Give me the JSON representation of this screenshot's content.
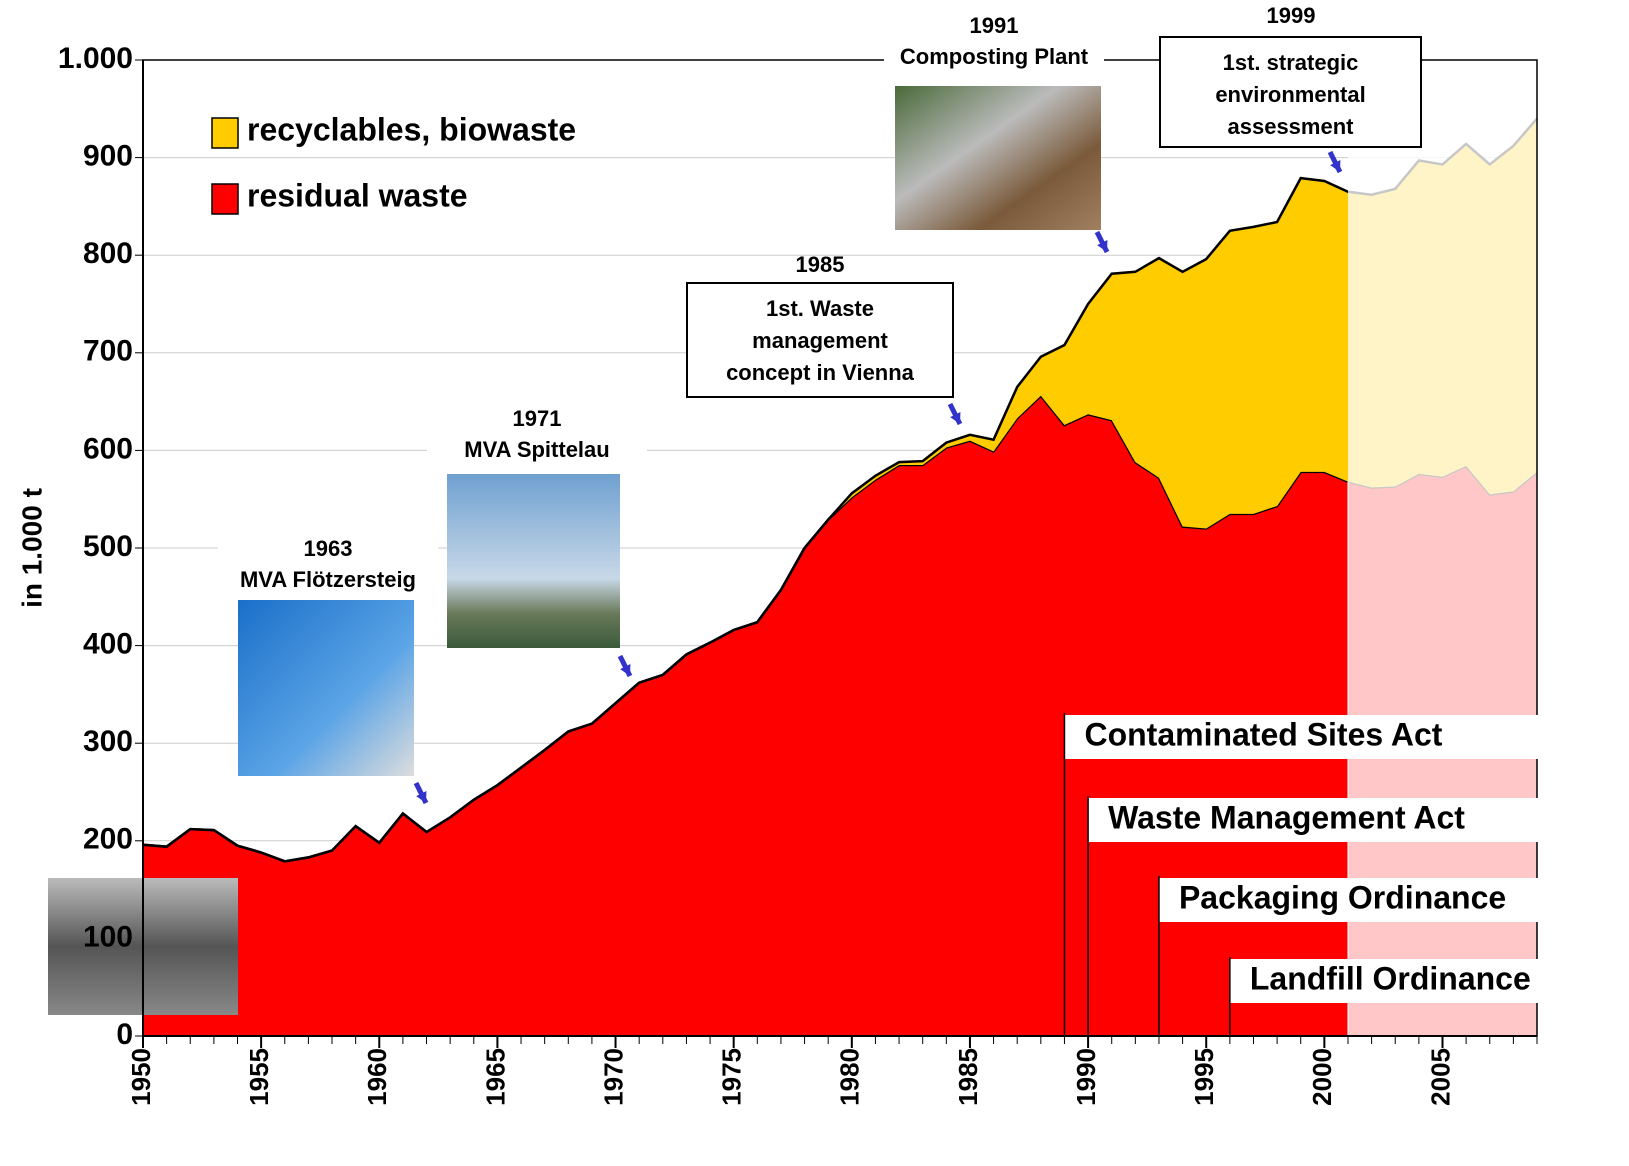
{
  "chart_data": {
    "type": "stacked_area",
    "y_axis_label": "in 1.000 t",
    "x": [
      1950,
      1951,
      1952,
      1953,
      1954,
      1955,
      1956,
      1957,
      1958,
      1959,
      1960,
      1961,
      1962,
      1963,
      1964,
      1965,
      1966,
      1967,
      1968,
      1969,
      1970,
      1971,
      1972,
      1973,
      1974,
      1975,
      1976,
      1977,
      1978,
      1979,
      1980,
      1981,
      1982,
      1983,
      1984,
      1985,
      1986,
      1987,
      1988,
      1989,
      1990,
      1991,
      1992,
      1993,
      1994,
      1995,
      1996,
      1997,
      1998,
      1999,
      2000,
      2001,
      2002,
      2003,
      2004,
      2005,
      2006,
      2007,
      2008,
      2009
    ],
    "series": [
      {
        "name": "residual waste",
        "color": "#ff0000",
        "faded_color": "#ffcccc",
        "values": [
          196,
          194,
          212,
          211,
          195,
          188,
          179,
          183,
          190,
          215,
          198,
          228,
          209,
          224,
          242,
          257,
          275,
          293,
          312,
          320,
          341,
          362,
          370,
          391,
          403,
          416,
          424,
          457,
          500,
          529,
          552,
          570,
          585,
          585,
          603,
          610,
          599,
          633,
          656,
          626,
          637,
          631,
          588,
          572,
          522,
          520,
          535,
          535,
          543,
          578,
          578,
          568,
          562,
          563,
          576,
          573,
          584,
          555,
          558,
          578
        ]
      },
      {
        "name": "recyclables, biowaste",
        "color": "#ffcc00",
        "faded_color": "#fff2cc",
        "values": [
          0,
          0,
          0,
          0,
          0,
          0,
          0,
          0,
          0,
          0,
          0,
          0,
          0,
          0,
          0,
          0,
          0,
          0,
          0,
          0,
          0,
          0,
          0,
          0,
          0,
          0,
          0,
          0,
          0,
          0,
          4,
          4,
          3,
          4,
          5,
          6,
          12,
          32,
          40,
          82,
          113,
          150,
          195,
          225,
          261,
          276,
          290,
          294,
          291,
          301,
          298,
          297,
          300,
          305,
          321,
          320,
          330,
          338,
          354,
          362
        ]
      }
    ],
    "faded_from": 2001,
    "xlim": [
      1950,
      2009
    ],
    "xticks": [
      1950,
      1955,
      1960,
      1965,
      1970,
      1975,
      1980,
      1985,
      1990,
      1995,
      2000,
      2005
    ],
    "ylim": [
      0,
      1000
    ],
    "yticks": [
      0,
      100,
      200,
      300,
      400,
      500,
      600,
      700,
      800,
      900,
      {
        "value": 1000,
        "label": "1.000"
      }
    ],
    "grid": true,
    "annotations": [
      {
        "year": "1963",
        "label": "MVA Flötzersteig"
      },
      {
        "year": "1971",
        "label": "MVA Spittelau"
      },
      {
        "year": "1985",
        "lines": [
          "1st. Waste",
          "management",
          "concept in Vienna"
        ]
      },
      {
        "year": "1991",
        "label": "Composting Plant"
      },
      {
        "year": "1999",
        "lines": [
          "1st. strategic",
          "environmental",
          "assessment"
        ]
      }
    ],
    "acts": [
      {
        "x": 1989,
        "label": "Contaminated Sites Act"
      },
      {
        "x": 1990,
        "label": "Waste Management Act"
      },
      {
        "x": 1993,
        "label": "Packaging Ordinance"
      },
      {
        "x": 1996,
        "label": "Landfill Ordinance"
      }
    ]
  }
}
